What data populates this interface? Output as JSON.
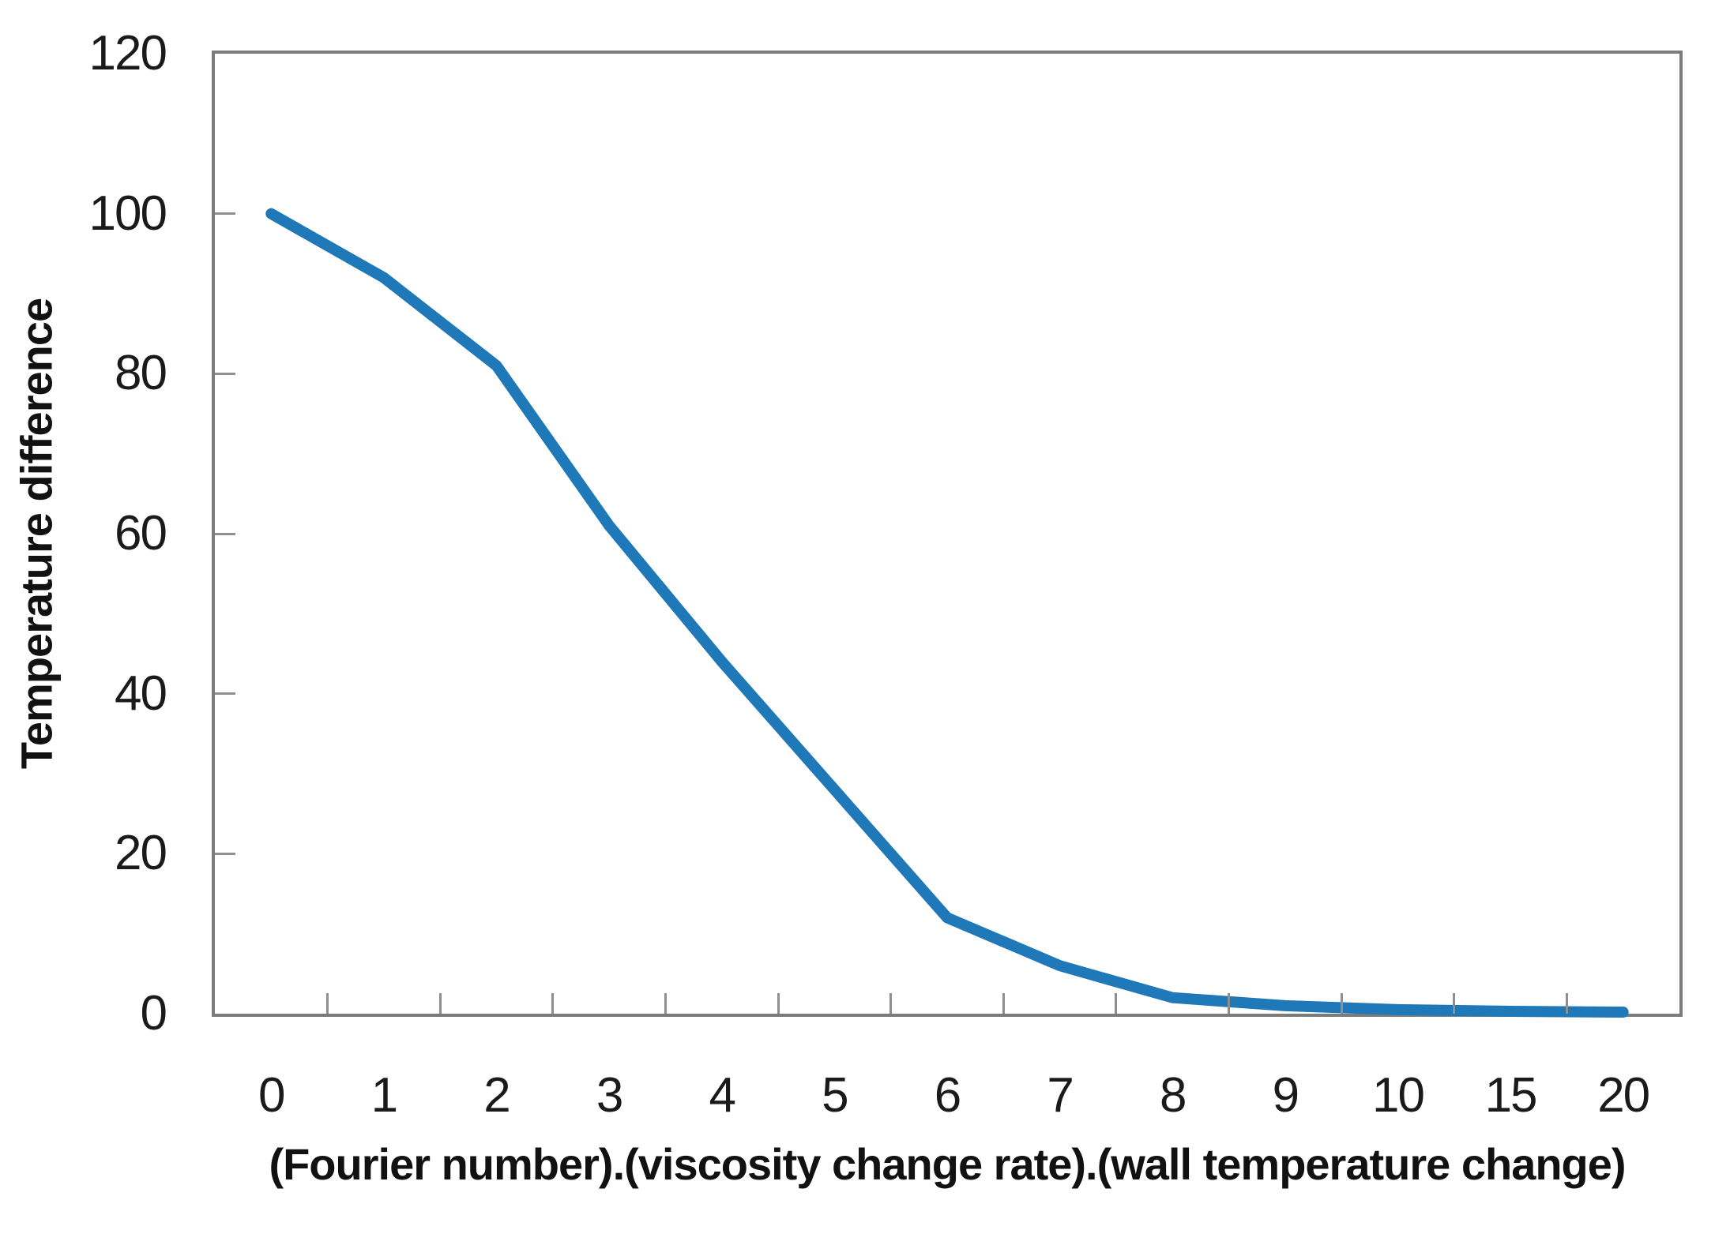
{
  "chart_data": {
    "type": "line",
    "categories": [
      "0",
      "1",
      "2",
      "3",
      "4",
      "5",
      "6",
      "7",
      "8",
      "9",
      "10",
      "15",
      "20"
    ],
    "values": [
      100,
      92,
      81,
      61,
      44,
      28,
      12,
      6,
      2,
      1,
      0.5,
      0.3,
      0.2
    ],
    "series_name": "Temperature difference",
    "title": "",
    "xlabel": "(Fourier number).(viscosity change rate).(wall temperature change)",
    "ylabel": "Temperature difference",
    "ylim": [
      0,
      120
    ],
    "yticks": [
      0,
      20,
      40,
      60,
      80,
      100,
      120
    ],
    "grid": false,
    "legend": "none",
    "colors": {
      "line": "#1f78b8",
      "plot_border": "#7c7c7c",
      "tick_mark": "#8f8f8f",
      "text": "#1a1a1a"
    }
  }
}
